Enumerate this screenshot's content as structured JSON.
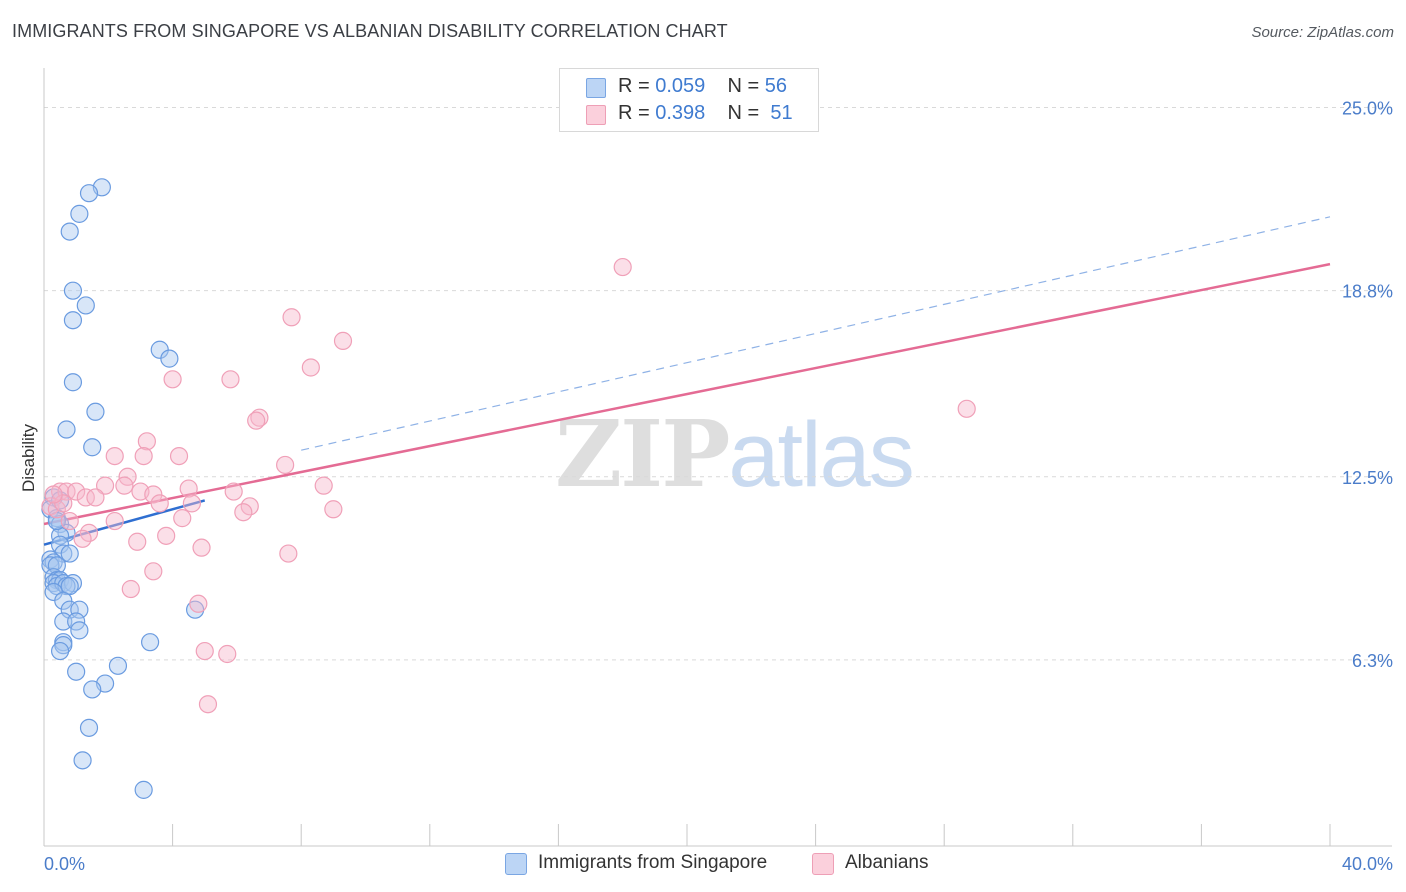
{
  "title": "IMMIGRANTS FROM SINGAPORE VS ALBANIAN DISABILITY CORRELATION CHART",
  "source": "Source: ZipAtlas.com",
  "watermark": {
    "zip": "ZIP",
    "atlas": "atlas"
  },
  "legend_top": {
    "rows": [
      {
        "r_label": "R =",
        "r_value": "0.059",
        "n_label": "N =",
        "n_value": "56",
        "color": "#a9c8f0"
      },
      {
        "r_label": "R =",
        "r_value": "0.398",
        "n_label": "N =",
        "n_value": "51",
        "color": "#f7b9cb"
      }
    ]
  },
  "legend_bottom": [
    {
      "label": "Immigrants from Singapore",
      "color": "#a9c8f0"
    },
    {
      "label": "Albanians",
      "color": "#f7b9cb"
    }
  ],
  "chart_data": {
    "type": "scatter",
    "title": "IMMIGRANTS FROM SINGAPORE VS ALBANIAN DISABILITY CORRELATION CHART",
    "xlabel": "",
    "ylabel": "Disability",
    "xlim": [
      0,
      40
    ],
    "ylim": [
      0,
      26
    ],
    "x_tick_labels": [
      "0.0%",
      "40.0%"
    ],
    "y_ticks": [
      6.3,
      12.5,
      18.8,
      25.0
    ],
    "y_tick_labels": [
      "6.3%",
      "12.5%",
      "18.8%",
      "25.0%"
    ],
    "grid": true,
    "legend_placement": "top-center",
    "colors": {
      "blue_point": "#6a9be0",
      "pink_point": "#f0a0b8",
      "blue_line": "#2f6fd1",
      "pink_line": "#e46b94"
    },
    "series": [
      {
        "name": "Immigrants from Singapore",
        "points": [
          [
            1.8,
            22.3
          ],
          [
            1.4,
            22.1
          ],
          [
            1.1,
            21.4
          ],
          [
            0.8,
            20.8
          ],
          [
            0.9,
            18.8
          ],
          [
            1.3,
            18.3
          ],
          [
            0.9,
            17.8
          ],
          [
            3.6,
            16.8
          ],
          [
            3.9,
            16.5
          ],
          [
            0.9,
            15.7
          ],
          [
            1.6,
            14.7
          ],
          [
            0.7,
            14.1
          ],
          [
            1.5,
            13.5
          ],
          [
            0.3,
            11.8
          ],
          [
            0.2,
            11.4
          ],
          [
            0.4,
            11.1
          ],
          [
            0.5,
            10.9
          ],
          [
            0.7,
            10.6
          ],
          [
            0.5,
            10.5
          ],
          [
            0.5,
            10.2
          ],
          [
            0.6,
            9.9
          ],
          [
            0.8,
            9.9
          ],
          [
            0.2,
            9.7
          ],
          [
            0.3,
            9.6
          ],
          [
            0.2,
            9.5
          ],
          [
            0.4,
            9.5
          ],
          [
            0.3,
            9.1
          ],
          [
            0.4,
            9.0
          ],
          [
            0.5,
            9.0
          ],
          [
            0.3,
            8.9
          ],
          [
            0.4,
            8.8
          ],
          [
            0.6,
            8.9
          ],
          [
            0.9,
            8.9
          ],
          [
            0.7,
            8.8
          ],
          [
            0.8,
            8.8
          ],
          [
            0.3,
            8.6
          ],
          [
            0.6,
            8.3
          ],
          [
            0.8,
            8.0
          ],
          [
            1.1,
            8.0
          ],
          [
            4.7,
            8.0
          ],
          [
            0.6,
            7.6
          ],
          [
            1.0,
            7.6
          ],
          [
            1.1,
            7.3
          ],
          [
            0.6,
            6.9
          ],
          [
            0.6,
            6.8
          ],
          [
            0.5,
            6.6
          ],
          [
            3.3,
            6.9
          ],
          [
            2.3,
            6.1
          ],
          [
            1.0,
            5.9
          ],
          [
            1.9,
            5.5
          ],
          [
            1.5,
            5.3
          ],
          [
            1.4,
            4.0
          ],
          [
            1.2,
            2.9
          ],
          [
            3.1,
            1.9
          ],
          [
            0.5,
            11.7
          ],
          [
            0.4,
            11.0
          ]
        ],
        "trend": {
          "x0": 0.0,
          "y0": 10.2,
          "x1": 5.0,
          "y1": 11.7
        }
      },
      {
        "name": "Albanians",
        "points": [
          [
            18.0,
            19.6
          ],
          [
            7.7,
            17.9
          ],
          [
            9.3,
            17.1
          ],
          [
            8.3,
            16.2
          ],
          [
            4.0,
            15.8
          ],
          [
            5.8,
            15.8
          ],
          [
            28.7,
            14.8
          ],
          [
            6.7,
            14.5
          ],
          [
            6.6,
            14.4
          ],
          [
            3.2,
            13.7
          ],
          [
            3.1,
            13.2
          ],
          [
            2.2,
            13.2
          ],
          [
            4.2,
            13.2
          ],
          [
            7.5,
            12.9
          ],
          [
            2.6,
            12.5
          ],
          [
            1.9,
            12.2
          ],
          [
            2.5,
            12.2
          ],
          [
            3.0,
            12.0
          ],
          [
            4.5,
            12.1
          ],
          [
            5.9,
            12.0
          ],
          [
            8.7,
            12.2
          ],
          [
            0.5,
            12.0
          ],
          [
            0.7,
            12.0
          ],
          [
            1.0,
            12.0
          ],
          [
            1.3,
            11.8
          ],
          [
            1.6,
            11.8
          ],
          [
            3.4,
            11.9
          ],
          [
            3.6,
            11.6
          ],
          [
            4.6,
            11.6
          ],
          [
            6.4,
            11.5
          ],
          [
            9.0,
            11.4
          ],
          [
            0.2,
            11.5
          ],
          [
            0.4,
            11.4
          ],
          [
            0.6,
            11.6
          ],
          [
            0.8,
            11.0
          ],
          [
            2.2,
            11.0
          ],
          [
            4.3,
            11.1
          ],
          [
            6.2,
            11.3
          ],
          [
            1.4,
            10.6
          ],
          [
            1.2,
            10.4
          ],
          [
            2.9,
            10.3
          ],
          [
            3.8,
            10.5
          ],
          [
            4.9,
            10.1
          ],
          [
            7.6,
            9.9
          ],
          [
            3.4,
            9.3
          ],
          [
            2.7,
            8.7
          ],
          [
            4.8,
            8.2
          ],
          [
            5.0,
            6.6
          ],
          [
            5.7,
            6.5
          ],
          [
            5.1,
            4.8
          ],
          [
            0.3,
            11.9
          ]
        ],
        "trend": {
          "x0": 0.0,
          "y0": 10.9,
          "x1": 40.0,
          "y1": 19.7
        },
        "trend_dashed_extension": {
          "x0": 8.0,
          "y0": 13.4,
          "x1": 40.0,
          "y1": 21.3
        }
      }
    ]
  }
}
